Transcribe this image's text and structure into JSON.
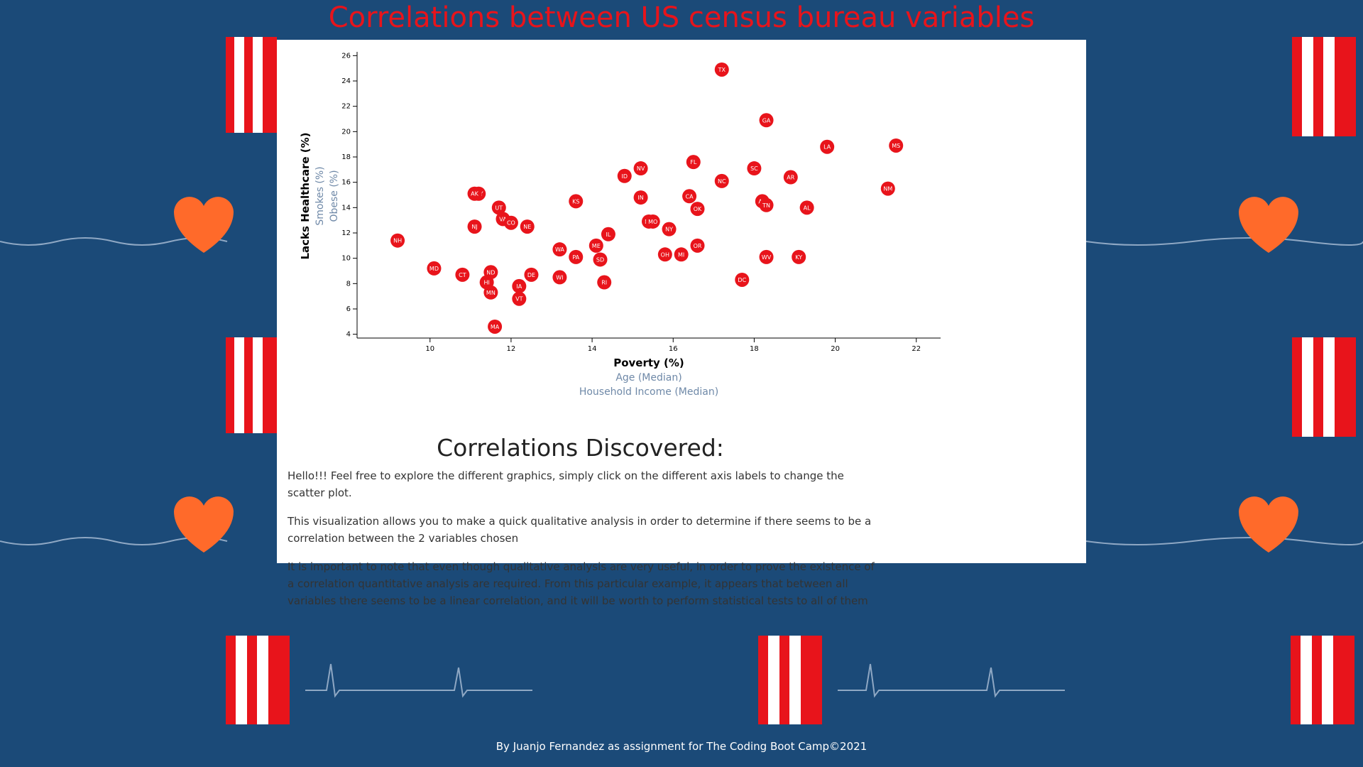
{
  "header": {
    "title": "Correlations between US census bureau variables"
  },
  "chart_data": {
    "type": "scatter",
    "x_label": "Poverty (%)",
    "x_options": [
      "Age (Median)",
      "Household Income (Median)"
    ],
    "y_label": "Lacks Healthcare (%)",
    "y_options": [
      "Smokes (%)",
      "Obese (%)"
    ],
    "labels": [
      "NH",
      "MD",
      "CT",
      "WY",
      "AK",
      "NJ",
      "UT",
      "VA",
      "CO",
      "NE",
      "ND",
      "HI",
      "MN",
      "IA",
      "VT",
      "DE",
      "MA",
      "WA",
      "WI",
      "PA",
      "KS",
      "ME",
      "SD",
      "IL",
      "RI",
      "ID",
      "NV",
      "IN",
      "MT",
      "MO",
      "NY",
      "OH",
      "MI",
      "OR",
      "FL",
      "CA",
      "OK",
      "TX",
      "NC",
      "DC",
      "SC",
      "AZ",
      "TN",
      "GA",
      "AR",
      "WV",
      "AL",
      "KY",
      "LA",
      "NM",
      "MS"
    ],
    "x": [
      9.2,
      10.1,
      10.8,
      11.2,
      11.1,
      11.1,
      11.7,
      11.8,
      12.0,
      12.4,
      11.5,
      11.4,
      11.5,
      12.2,
      12.2,
      12.5,
      11.6,
      13.2,
      13.2,
      13.6,
      13.6,
      14.1,
      14.2,
      14.4,
      14.3,
      14.8,
      15.2,
      15.2,
      15.4,
      15.5,
      15.9,
      15.8,
      16.2,
      16.6,
      16.5,
      16.4,
      16.6,
      17.2,
      17.2,
      17.7,
      18.0,
      18.2,
      18.3,
      18.3,
      18.9,
      18.3,
      19.3,
      19.1,
      19.8,
      21.3,
      21.5
    ],
    "y": [
      11.4,
      9.2,
      8.7,
      15.1,
      15.1,
      12.5,
      14.0,
      13.1,
      12.8,
      12.5,
      8.9,
      8.1,
      7.3,
      7.8,
      6.8,
      8.7,
      4.6,
      10.7,
      8.5,
      10.1,
      14.5,
      11.0,
      9.9,
      11.9,
      8.1,
      16.5,
      17.1,
      14.8,
      12.9,
      12.9,
      12.3,
      10.3,
      10.3,
      11.0,
      17.6,
      14.9,
      13.9,
      24.9,
      16.1,
      8.3,
      17.1,
      14.5,
      14.2,
      20.9,
      16.4,
      10.1,
      14.0,
      10.1,
      18.8,
      15.5,
      18.9
    ],
    "color": "#e8141b",
    "xlim": [
      8.2,
      22.6
    ],
    "ylim": [
      3.7,
      26.3
    ],
    "xticks": [
      10,
      12,
      14,
      16,
      18,
      20,
      22
    ],
    "yticks": [
      4,
      6,
      8,
      10,
      12,
      14,
      16,
      18,
      20,
      22,
      24,
      26
    ]
  },
  "section": {
    "heading": "Correlations Discovered:",
    "paragraphs": [
      "Hello!!! Feel free to explore the different graphics, simply click on the different axis labels to change the scatter plot.",
      "This visualization allows you to make a quick qualitative analysis in order to determine if there seems to be a correlation between the 2 variables chosen",
      "It is important to note that even though qualitative analysis are very useful, in order to prove the existence of a correlation quantitative analysis are required. From this particular example, it appears that between all variables there seems to be a linear correlation, and it will be worth to perform statistical tests to all of them"
    ]
  },
  "footer": {
    "text": "By Juanjo Fernandez as assignment for The Coding Boot Camp©2021"
  }
}
